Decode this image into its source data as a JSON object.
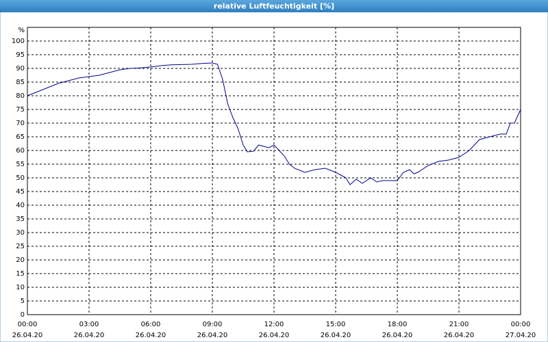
{
  "chart_data": {
    "type": "line",
    "title": "relative Luftfeuchtigkeit [%]",
    "y_axis_label": "%",
    "x": [
      0,
      0.5,
      1,
      1.5,
      2,
      2.5,
      3,
      3.5,
      4,
      4.5,
      5,
      5.5,
      6,
      6.5,
      7,
      7.5,
      8,
      8.5,
      9,
      9.25,
      9.5,
      9.75,
      10,
      10.25,
      10.5,
      10.7,
      11,
      11.25,
      11.5,
      11.75,
      12,
      12.25,
      12.5,
      12.75,
      13,
      13.5,
      14,
      14.5,
      15,
      15.25,
      15.5,
      15.7,
      16,
      16.3,
      16.7,
      17,
      17.3,
      17.7,
      18,
      18.3,
      18.6,
      18.8,
      19,
      19.5,
      20,
      20.5,
      21,
      21.5,
      22,
      22.5,
      23,
      23.3,
      23.5,
      23.7,
      24
    ],
    "values": [
      80,
      81.5,
      83,
      84.5,
      85.5,
      86.5,
      87,
      87.5,
      88.5,
      89.5,
      90,
      90.2,
      90.5,
      91,
      91.3,
      91.4,
      91.5,
      91.8,
      92,
      91.5,
      86,
      77,
      72,
      68,
      62,
      59.5,
      59.7,
      62,
      61.5,
      61,
      62,
      60,
      58,
      55,
      53.5,
      52,
      53,
      53.5,
      52,
      51,
      50,
      47.5,
      49.5,
      48,
      50,
      48.5,
      49,
      49,
      49,
      52,
      53,
      51.5,
      52,
      54.5,
      56,
      56.5,
      57.5,
      60,
      64,
      65,
      66,
      66,
      70,
      70,
      75
    ],
    "color": "#00008b",
    "xlim": [
      0,
      24
    ],
    "xticks": [
      {
        "value": 0,
        "label": "00:00"
      },
      {
        "value": 3,
        "label": "03:00"
      },
      {
        "value": 6,
        "label": "06:00"
      },
      {
        "value": 9,
        "label": "09:00"
      },
      {
        "value": 12,
        "label": "12:00"
      },
      {
        "value": 15,
        "label": "15:00"
      },
      {
        "value": 18,
        "label": "18:00"
      },
      {
        "value": 21,
        "label": "21:00"
      },
      {
        "value": 24,
        "label": "00:00"
      }
    ],
    "xtick_dates": [
      "26.04.20",
      "26.04.20",
      "26.04.20",
      "26.04.20",
      "26.04.20",
      "26.04.20",
      "26.04.20",
      "26.04.20",
      "27.04.20"
    ],
    "ylim": [
      0,
      105
    ],
    "yticks": [
      0,
      5,
      10,
      15,
      20,
      25,
      30,
      35,
      40,
      45,
      50,
      55,
      60,
      65,
      70,
      75,
      80,
      85,
      90,
      95,
      100
    ],
    "grid": true
  }
}
